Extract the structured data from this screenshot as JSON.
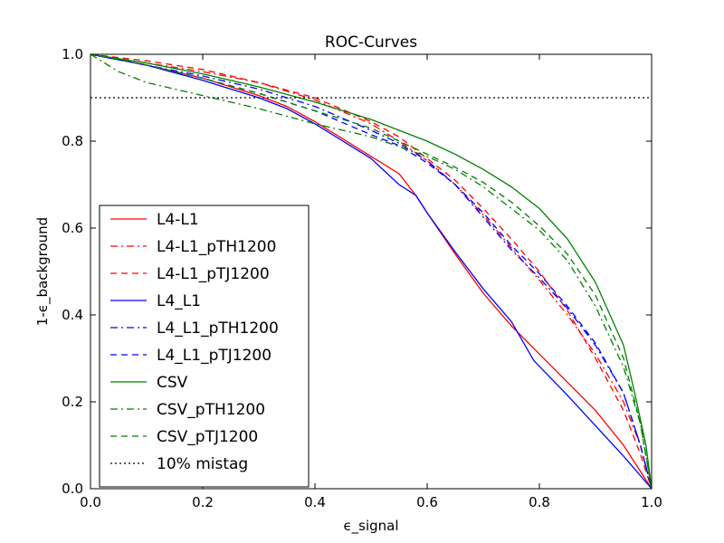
{
  "chart_data": {
    "type": "line",
    "title": "ROC-Curves",
    "xlabel": "ϵ_signal",
    "ylabel": "1-ϵ_background",
    "xlim": [
      0.0,
      1.0
    ],
    "ylim": [
      0.0,
      1.0
    ],
    "xticks": [
      "0.0",
      "0.2",
      "0.4",
      "0.6",
      "0.8",
      "1.0"
    ],
    "yticks": [
      "0.0",
      "0.2",
      "0.4",
      "0.6",
      "0.8",
      "1.0"
    ],
    "grid": false,
    "legend_position": "lower-left",
    "series": [
      {
        "name": "L4-L1",
        "color": "#ff0000",
        "dash": "solid",
        "points": [
          [
            0,
            1
          ],
          [
            0.1,
            0.975
          ],
          [
            0.2,
            0.945
          ],
          [
            0.3,
            0.905
          ],
          [
            0.35,
            0.88
          ],
          [
            0.4,
            0.845
          ],
          [
            0.45,
            0.805
          ],
          [
            0.5,
            0.765
          ],
          [
            0.55,
            0.725
          ],
          [
            0.58,
            0.675
          ],
          [
            0.6,
            0.635
          ],
          [
            0.65,
            0.54
          ],
          [
            0.7,
            0.45
          ],
          [
            0.75,
            0.375
          ],
          [
            0.8,
            0.31
          ],
          [
            0.85,
            0.245
          ],
          [
            0.9,
            0.18
          ],
          [
            0.95,
            0.1
          ],
          [
            1.0,
            0.0
          ]
        ]
      },
      {
        "name": "L4-L1_pTH1200",
        "color": "#ff0000",
        "dash": "dashdot",
        "points": [
          [
            0,
            1
          ],
          [
            0.1,
            0.98
          ],
          [
            0.2,
            0.96
          ],
          [
            0.3,
            0.935
          ],
          [
            0.4,
            0.895
          ],
          [
            0.5,
            0.84
          ],
          [
            0.55,
            0.8
          ],
          [
            0.6,
            0.755
          ],
          [
            0.65,
            0.7
          ],
          [
            0.7,
            0.63
          ],
          [
            0.75,
            0.555
          ],
          [
            0.8,
            0.48
          ],
          [
            0.85,
            0.4
          ],
          [
            0.9,
            0.31
          ],
          [
            0.95,
            0.2
          ],
          [
            0.98,
            0.1
          ],
          [
            1.0,
            0.0
          ]
        ]
      },
      {
        "name": "L4-L1_pTJ1200",
        "color": "#ff0000",
        "dash": "dashed",
        "points": [
          [
            0,
            1
          ],
          [
            0.1,
            0.985
          ],
          [
            0.2,
            0.965
          ],
          [
            0.3,
            0.935
          ],
          [
            0.4,
            0.9
          ],
          [
            0.5,
            0.845
          ],
          [
            0.55,
            0.81
          ],
          [
            0.6,
            0.76
          ],
          [
            0.65,
            0.71
          ],
          [
            0.7,
            0.645
          ],
          [
            0.75,
            0.575
          ],
          [
            0.8,
            0.5
          ],
          [
            0.85,
            0.41
          ],
          [
            0.9,
            0.3
          ],
          [
            0.95,
            0.18
          ],
          [
            0.98,
            0.08
          ],
          [
            1.0,
            0.0
          ]
        ]
      },
      {
        "name": "L4_L1",
        "color": "#0000ff",
        "dash": "solid",
        "points": [
          [
            0,
            1
          ],
          [
            0.1,
            0.975
          ],
          [
            0.2,
            0.94
          ],
          [
            0.3,
            0.9
          ],
          [
            0.35,
            0.875
          ],
          [
            0.4,
            0.84
          ],
          [
            0.45,
            0.8
          ],
          [
            0.5,
            0.76
          ],
          [
            0.55,
            0.7
          ],
          [
            0.58,
            0.675
          ],
          [
            0.6,
            0.635
          ],
          [
            0.65,
            0.545
          ],
          [
            0.7,
            0.46
          ],
          [
            0.75,
            0.385
          ],
          [
            0.79,
            0.295
          ],
          [
            0.82,
            0.255
          ],
          [
            0.85,
            0.215
          ],
          [
            0.9,
            0.145
          ],
          [
            0.95,
            0.075
          ],
          [
            1.0,
            0.0
          ]
        ]
      },
      {
        "name": "L4_L1_pTH1200",
        "color": "#0000ff",
        "dash": "dashdot",
        "points": [
          [
            0,
            1
          ],
          [
            0.1,
            0.975
          ],
          [
            0.2,
            0.95
          ],
          [
            0.3,
            0.92
          ],
          [
            0.4,
            0.88
          ],
          [
            0.5,
            0.825
          ],
          [
            0.55,
            0.795
          ],
          [
            0.6,
            0.755
          ],
          [
            0.65,
            0.7
          ],
          [
            0.7,
            0.625
          ],
          [
            0.75,
            0.55
          ],
          [
            0.8,
            0.485
          ],
          [
            0.85,
            0.415
          ],
          [
            0.9,
            0.33
          ],
          [
            0.95,
            0.22
          ],
          [
            0.98,
            0.1
          ],
          [
            1.0,
            0.0
          ]
        ]
      },
      {
        "name": "L4_L1_pTJ1200",
        "color": "#0000ff",
        "dash": "dashed",
        "points": [
          [
            0,
            1
          ],
          [
            0.1,
            0.975
          ],
          [
            0.2,
            0.945
          ],
          [
            0.3,
            0.91
          ],
          [
            0.4,
            0.87
          ],
          [
            0.5,
            0.815
          ],
          [
            0.55,
            0.79
          ],
          [
            0.6,
            0.75
          ],
          [
            0.65,
            0.7
          ],
          [
            0.7,
            0.635
          ],
          [
            0.75,
            0.56
          ],
          [
            0.8,
            0.495
          ],
          [
            0.85,
            0.42
          ],
          [
            0.9,
            0.335
          ],
          [
            0.95,
            0.22
          ],
          [
            0.98,
            0.1
          ],
          [
            1.0,
            0.0
          ]
        ]
      },
      {
        "name": "CSV",
        "color": "#008000",
        "dash": "solid",
        "points": [
          [
            0,
            1
          ],
          [
            0.1,
            0.98
          ],
          [
            0.2,
            0.955
          ],
          [
            0.3,
            0.925
          ],
          [
            0.4,
            0.89
          ],
          [
            0.5,
            0.85
          ],
          [
            0.6,
            0.8
          ],
          [
            0.65,
            0.77
          ],
          [
            0.7,
            0.735
          ],
          [
            0.75,
            0.695
          ],
          [
            0.8,
            0.645
          ],
          [
            0.85,
            0.575
          ],
          [
            0.9,
            0.475
          ],
          [
            0.95,
            0.33
          ],
          [
            0.97,
            0.22
          ],
          [
            0.99,
            0.1
          ],
          [
            1.0,
            0.0
          ]
        ]
      },
      {
        "name": "CSV_pTH1200",
        "color": "#008000",
        "dash": "dashdot",
        "points": [
          [
            0,
            1
          ],
          [
            0.05,
            0.96
          ],
          [
            0.1,
            0.935
          ],
          [
            0.2,
            0.905
          ],
          [
            0.3,
            0.875
          ],
          [
            0.4,
            0.84
          ],
          [
            0.5,
            0.81
          ],
          [
            0.6,
            0.765
          ],
          [
            0.65,
            0.735
          ],
          [
            0.7,
            0.695
          ],
          [
            0.75,
            0.645
          ],
          [
            0.8,
            0.595
          ],
          [
            0.85,
            0.525
          ],
          [
            0.9,
            0.42
          ],
          [
            0.95,
            0.28
          ],
          [
            0.98,
            0.15
          ],
          [
            1.0,
            0.0
          ]
        ]
      },
      {
        "name": "CSV_pTJ1200",
        "color": "#008000",
        "dash": "dashed",
        "points": [
          [
            0,
            1
          ],
          [
            0.1,
            0.975
          ],
          [
            0.2,
            0.945
          ],
          [
            0.3,
            0.91
          ],
          [
            0.4,
            0.87
          ],
          [
            0.5,
            0.83
          ],
          [
            0.6,
            0.77
          ],
          [
            0.65,
            0.74
          ],
          [
            0.7,
            0.705
          ],
          [
            0.75,
            0.66
          ],
          [
            0.8,
            0.605
          ],
          [
            0.85,
            0.54
          ],
          [
            0.9,
            0.445
          ],
          [
            0.95,
            0.3
          ],
          [
            0.98,
            0.15
          ],
          [
            1.0,
            0.0
          ]
        ]
      }
    ],
    "reference_line": {
      "name": "10% mistag",
      "y": 0.9,
      "color": "#000000",
      "dash": "dotted"
    }
  }
}
